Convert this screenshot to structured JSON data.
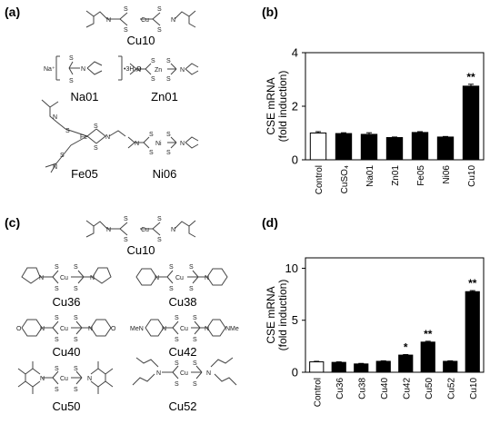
{
  "panels": {
    "a": {
      "label": "(a)",
      "compounds": [
        "Cu10",
        "Na01",
        "Zn01",
        "Fe05",
        "Ni06"
      ],
      "atoms": {
        "na_prefix": "Na⁺",
        "hydrate": "•3H₂O",
        "cu": "Cu",
        "zn": "Zn",
        "fe": "Fe",
        "ni": "Ni",
        "s": "S",
        "n": "N"
      }
    },
    "b": {
      "label": "(b)"
    },
    "c": {
      "label": "(c)",
      "compounds": [
        "Cu10",
        "Cu36",
        "Cu38",
        "Cu40",
        "Cu42",
        "Cu50",
        "Cu52"
      ],
      "atoms": {
        "cu": "Cu",
        "s": "S",
        "n": "N",
        "o": "O",
        "me_n": "MeN",
        "n_me": "NMe"
      }
    },
    "d": {
      "label": "(d)"
    }
  },
  "chart_data": [
    {
      "type": "bar",
      "panel": "b",
      "ylabel": "CSE mRNA",
      "ylabel2": "(fold induction)",
      "categories": [
        "Control",
        "CuSO₄",
        "Na01",
        "Zn01",
        "Fe05",
        "Ni06",
        "Cu10"
      ],
      "values": [
        1.0,
        0.98,
        0.95,
        0.83,
        1.02,
        0.85,
        2.75
      ],
      "errors": [
        0.05,
        0.03,
        0.06,
        0.02,
        0.03,
        0.02,
        0.07
      ],
      "colors": [
        "#ffffff",
        "#000000",
        "#000000",
        "#000000",
        "#000000",
        "#000000",
        "#000000"
      ],
      "significance": [
        "",
        "",
        "",
        "",
        "",
        "",
        "**"
      ],
      "ylim": [
        0,
        4
      ],
      "yticks": [
        0,
        2,
        4
      ]
    },
    {
      "type": "bar",
      "panel": "d",
      "ylabel": "CSE mRNA",
      "ylabel2": "(fold induction)",
      "categories": [
        "Control",
        "Cu36",
        "Cu38",
        "Cu40",
        "Cu42",
        "Cu50",
        "Cu52",
        "Cu10"
      ],
      "values": [
        1.0,
        0.95,
        0.8,
        1.05,
        1.65,
        2.9,
        1.05,
        7.75
      ],
      "errors": [
        0.05,
        0.05,
        0.05,
        0.05,
        0.05,
        0.08,
        0.05,
        0.1
      ],
      "colors": [
        "#ffffff",
        "#000000",
        "#000000",
        "#000000",
        "#000000",
        "#000000",
        "#000000",
        "#000000"
      ],
      "significance": [
        "",
        "",
        "",
        "",
        "*",
        "**",
        "",
        "**"
      ],
      "ylim": [
        0,
        11
      ],
      "yticks": [
        0,
        5,
        10
      ]
    }
  ]
}
